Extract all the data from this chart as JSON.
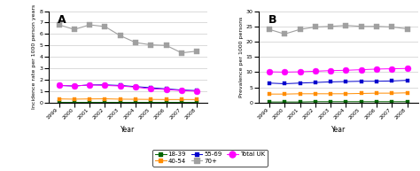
{
  "years": [
    1999,
    2000,
    2001,
    2002,
    2003,
    2004,
    2005,
    2006,
    2007,
    2008
  ],
  "panel_A": {
    "title": "A",
    "ylabel": "Incidence rate per 1000 person years",
    "ylim": [
      0,
      8
    ],
    "yticks": [
      0,
      1,
      2,
      3,
      4,
      5,
      6,
      7,
      8
    ],
    "series": {
      "18-39": [
        0.05,
        0.05,
        0.05,
        0.05,
        0.05,
        0.05,
        0.05,
        0.05,
        0.05,
        0.05
      ],
      "40-54": [
        0.32,
        0.3,
        0.32,
        0.33,
        0.3,
        0.29,
        0.28,
        0.27,
        0.27,
        0.27
      ],
      "55-69": [
        1.5,
        1.45,
        1.55,
        1.55,
        1.5,
        1.4,
        1.3,
        1.2,
        1.1,
        1.05
      ],
      "70+": [
        6.8,
        6.4,
        6.8,
        6.65,
        5.85,
        5.25,
        5.05,
        5.0,
        4.35,
        4.5
      ],
      "TotalUK": [
        1.5,
        1.45,
        1.55,
        1.5,
        1.45,
        1.35,
        1.2,
        1.15,
        1.05,
        1.0
      ]
    }
  },
  "panel_B": {
    "title": "B",
    "ylabel": "Prevalence per 1000 persons",
    "ylim": [
      0,
      30
    ],
    "yticks": [
      0,
      5,
      10,
      15,
      20,
      25,
      30
    ],
    "series": {
      "18-39": [
        0.2,
        0.2,
        0.2,
        0.3,
        0.3,
        0.3,
        0.3,
        0.3,
        0.3,
        0.3
      ],
      "40-54": [
        2.8,
        2.8,
        2.9,
        2.9,
        2.9,
        2.9,
        3.0,
        3.1,
        3.1,
        3.2
      ],
      "55-69": [
        6.4,
        6.2,
        6.4,
        6.6,
        6.8,
        6.9,
        7.0,
        7.0,
        7.1,
        7.3
      ],
      "70+": [
        24.0,
        22.5,
        24.0,
        24.8,
        25.0,
        25.3,
        25.0,
        25.0,
        24.8,
        24.2
      ],
      "TotalUK": [
        10.1,
        10.0,
        10.1,
        10.3,
        10.5,
        10.6,
        10.8,
        11.0,
        11.1,
        11.2
      ]
    }
  },
  "colors": {
    "18-39": "#006400",
    "40-54": "#FF8C00",
    "55-69": "#0000CD",
    "70+": "#A0A0A0",
    "TotalUK": "#FF00FF"
  },
  "markers": {
    "18-39": "s",
    "40-54": "s",
    "55-69": "s",
    "70+": "s",
    "TotalUK": "o"
  },
  "markersizes": {
    "18-39": 3,
    "40-54": 3,
    "55-69": 3,
    "70+": 4,
    "TotalUK": 5
  },
  "linewidths": {
    "18-39": 0.7,
    "40-54": 0.7,
    "55-69": 0.7,
    "70+": 0.8,
    "TotalUK": 0.7
  },
  "series_order": [
    "18-39",
    "40-54",
    "55-69",
    "70+",
    "TotalUK"
  ],
  "legend_keys": [
    "18-39",
    "40-54",
    "55-69",
    "70+",
    "TotalUK"
  ],
  "legend_labels": [
    "18-39",
    "40-54",
    "55-69",
    "70+",
    "Total UK"
  ],
  "legend_ncol_row1": [
    "18-39",
    "40-54",
    "55-69"
  ],
  "legend_ncol_row2": [
    "70+",
    "TotalUK"
  ]
}
